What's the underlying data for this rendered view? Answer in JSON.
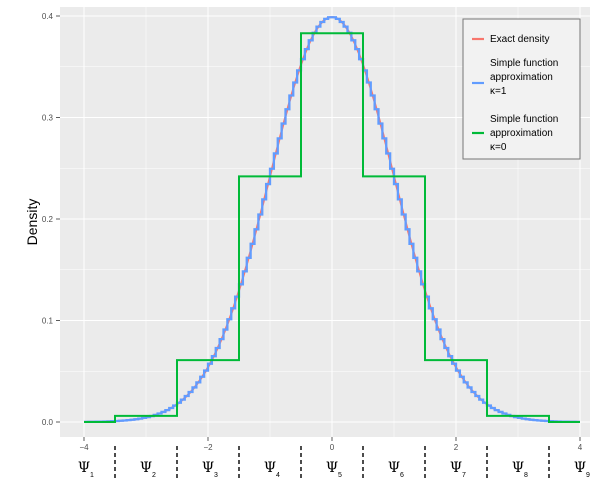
{
  "chart_data": {
    "type": "line",
    "xlabel": "",
    "ylabel": "Density",
    "xlim": [
      -4,
      4
    ],
    "ylim": [
      0,
      0.4
    ],
    "x_ticks": [
      -4,
      -2,
      0,
      2,
      4
    ],
    "x_tick_labels": [
      "−4",
      "−2",
      "0",
      "2",
      "4"
    ],
    "y_ticks": [
      0.0,
      0.1,
      0.2,
      0.3,
      0.4
    ],
    "y_tick_labels": [
      "0.0",
      "0.1",
      "0.2",
      "0.3",
      "0.4"
    ],
    "grid": true,
    "legend_position": "top-right",
    "series": [
      {
        "name": "Exact density",
        "color": "#F8766D",
        "kind": "normal-density",
        "mean": 0,
        "sd": 1
      },
      {
        "name": "Simple function approximation κ=1",
        "color": "#619CFF",
        "kind": "step",
        "step_width": 0.0625
      },
      {
        "name": "Simple function approximation κ=0",
        "color": "#00BA38",
        "kind": "step",
        "breaks": [
          -4,
          -3.5,
          -2.5,
          -1.5,
          -0.5,
          0.5,
          1.5,
          2.5,
          3.5,
          4
        ],
        "values": [
          0.0,
          0.006,
          0.061,
          0.242,
          0.383,
          0.242,
          0.061,
          0.006,
          0.0
        ]
      }
    ],
    "partition": {
      "boundaries": [
        -3.5,
        -2.5,
        -1.5,
        -0.5,
        0.5,
        1.5,
        2.5,
        3.5
      ],
      "labels": [
        {
          "symbol": "Ψ",
          "sub": "1"
        },
        {
          "symbol": "Ψ",
          "sub": "2"
        },
        {
          "symbol": "Ψ",
          "sub": "3"
        },
        {
          "symbol": "Ψ",
          "sub": "4"
        },
        {
          "symbol": "Ψ",
          "sub": "5"
        },
        {
          "symbol": "Ψ",
          "sub": "6"
        },
        {
          "symbol": "Ψ",
          "sub": "7"
        },
        {
          "symbol": "Ψ",
          "sub": "8"
        },
        {
          "symbol": "Ψ",
          "sub": "9"
        }
      ],
      "label_x": [
        -4,
        -3,
        -2,
        -1,
        0,
        1,
        2,
        3,
        4
      ]
    },
    "legend": [
      {
        "lines": [
          "Exact density"
        ]
      },
      {
        "lines": [
          "Simple function",
          "approximation",
          "κ=1"
        ]
      },
      {
        "lines": [
          "Simple function",
          "approximation",
          "κ=0"
        ]
      }
    ]
  }
}
